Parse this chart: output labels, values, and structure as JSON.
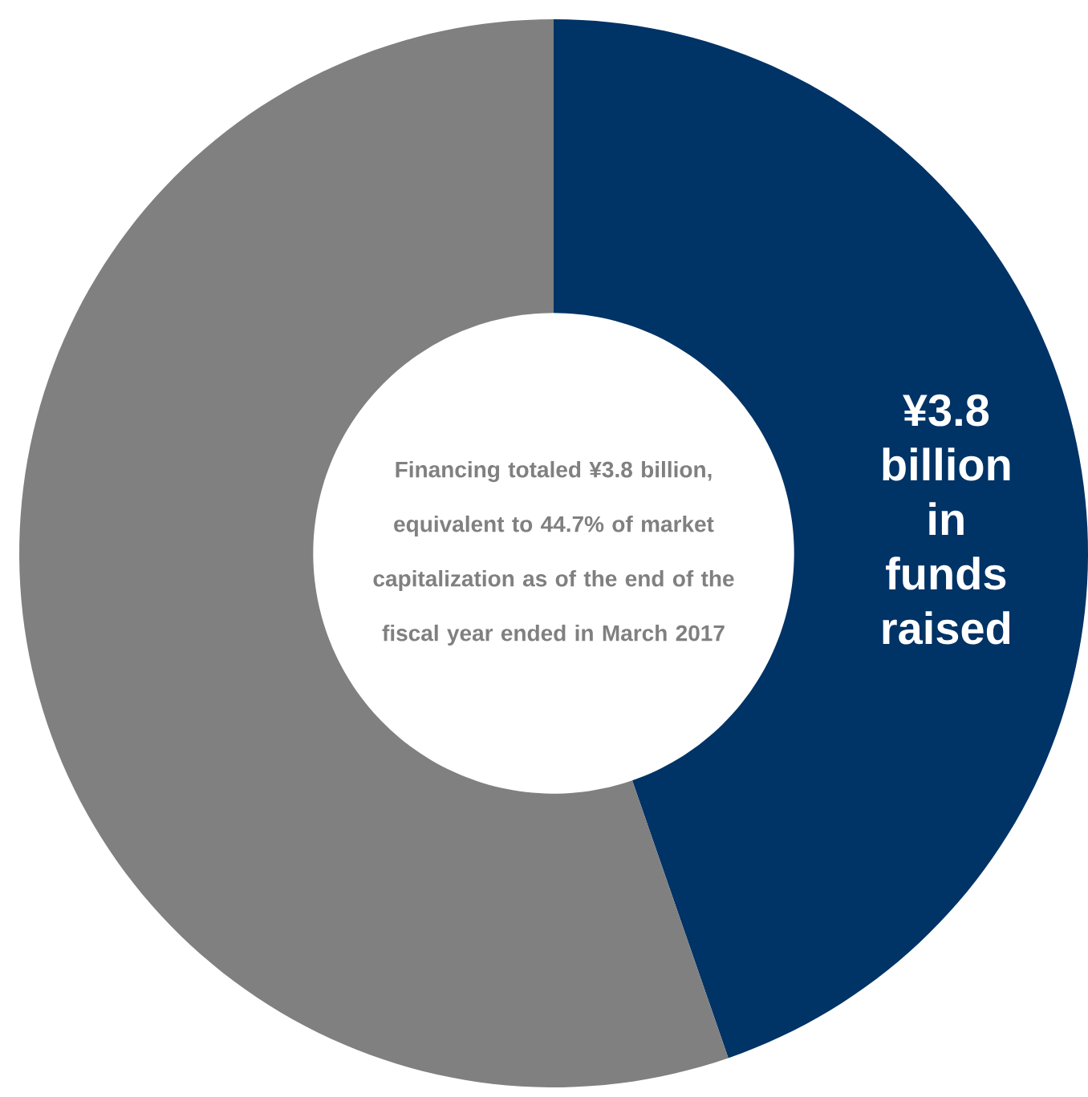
{
  "chart_data": {
    "type": "donut",
    "categories": [
      "¥3.8 billion in funds raised",
      null
    ],
    "values": [
      44.7,
      55.3
    ],
    "colors": [
      "#003366",
      "#808080"
    ],
    "annotations": [
      "Financing totaled ¥3.8 billion, equivalent to 44.7% of market capitalization as of the end of the fiscal year ended in March 2017"
    ]
  }
}
